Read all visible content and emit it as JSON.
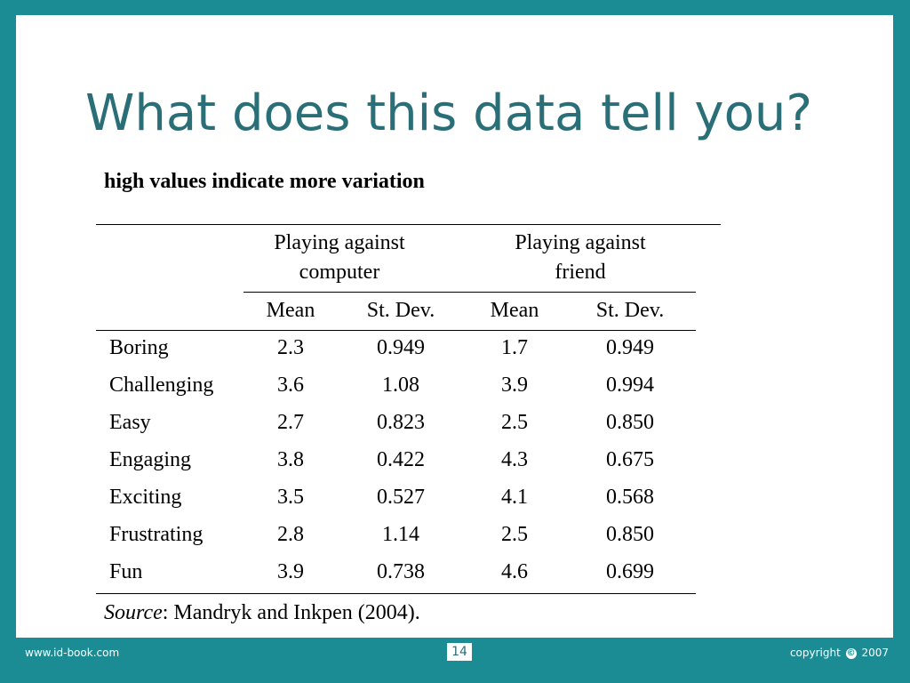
{
  "slide": {
    "title": "What does this data tell you?",
    "subtitle": "high values indicate more variation"
  },
  "table": {
    "groups": [
      {
        "line1": "Playing against",
        "line2": "computer"
      },
      {
        "line1": "Playing against",
        "line2": "friend"
      }
    ],
    "columns": [
      "Mean",
      "St. Dev.",
      "Mean",
      "St. Dev."
    ],
    "rows": [
      {
        "label": "Boring",
        "values": [
          "2.3",
          "0.949",
          "1.7",
          "0.949"
        ]
      },
      {
        "label": "Challenging",
        "values": [
          "3.6",
          "1.08",
          "3.9",
          "0.994"
        ]
      },
      {
        "label": "Easy",
        "values": [
          "2.7",
          "0.823",
          "2.5",
          "0.850"
        ]
      },
      {
        "label": "Engaging",
        "values": [
          "3.8",
          "0.422",
          "4.3",
          "0.675"
        ]
      },
      {
        "label": "Exciting",
        "values": [
          "3.5",
          "0.527",
          "4.1",
          "0.568"
        ]
      },
      {
        "label": "Frustrating",
        "values": [
          "2.8",
          "1.14",
          "2.5",
          "0.850"
        ]
      },
      {
        "label": "Fun",
        "values": [
          "3.9",
          "0.738",
          "4.6",
          "0.699"
        ]
      }
    ]
  },
  "source": {
    "label": "Source",
    "text": ": Mandryk and Inkpen (2004)."
  },
  "footer": {
    "website": "www.id-book.com",
    "page_number": "14",
    "copyright_prefix": "copyright",
    "copyright_symbol": "©",
    "copyright_year": "2007"
  },
  "colors": {
    "frame": "#1b8b94",
    "title": "#2a6f78"
  }
}
